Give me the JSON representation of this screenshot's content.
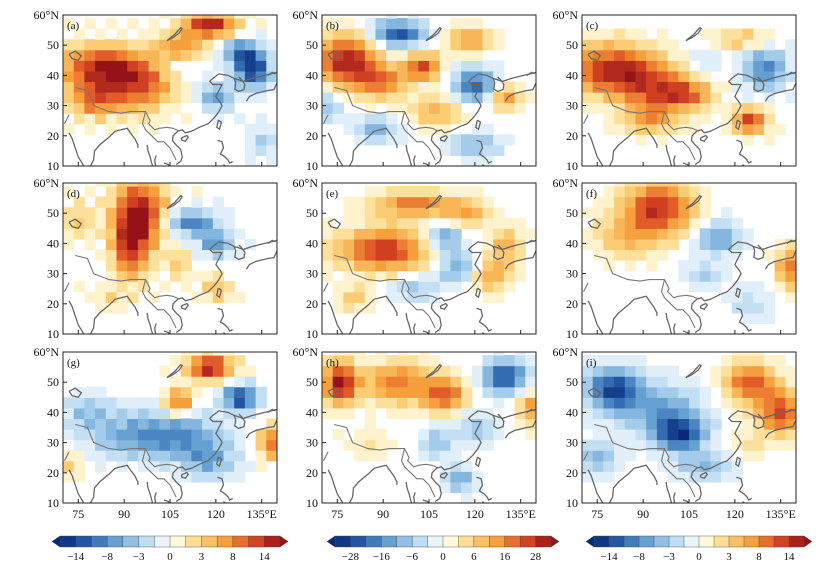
{
  "chart_data": {
    "type": "heatmap",
    "description_panels": [
      "(a)",
      "(b)",
      "(c)",
      "(d)",
      "(e)",
      "(f)",
      "(g)",
      "(h)",
      "(i)"
    ],
    "x_ticks": [
      75,
      90,
      105,
      120,
      135
    ],
    "x_tick_labels": [
      "75",
      "90",
      "105",
      "120",
      "135°E"
    ],
    "y_ticks": [
      60,
      50,
      40,
      30,
      20,
      10
    ],
    "y_tick_labels": [
      "60°N",
      "50",
      "40",
      "30",
      "20",
      "10"
    ],
    "xlim": [
      70,
      140
    ],
    "ylim": [
      10,
      60
    ],
    "colorbars": [
      {
        "name": "colorbar-left",
        "labels": [
          "−14",
          "−8",
          "−3",
          "0",
          "3",
          "8",
          "14"
        ]
      },
      {
        "name": "colorbar-middle",
        "labels": [
          "−28",
          "−16",
          "−6",
          "0",
          "6",
          "16",
          "28"
        ]
      },
      {
        "name": "colorbar-right",
        "labels": [
          "−14",
          "−8",
          "−3",
          "0",
          "3",
          "8",
          "14"
        ]
      }
    ],
    "panels": [
      {
        "label": "(a)",
        "blobs": [
          [
            82,
            43,
            9,
            5,
            0.85
          ],
          [
            95,
            37,
            8,
            6,
            0.7
          ],
          [
            80,
            32,
            6,
            4,
            0.6
          ],
          [
            118,
            57,
            6,
            3,
            0.9
          ],
          [
            108,
            50,
            6,
            3,
            0.5
          ],
          [
            132,
            42,
            4,
            4,
            -0.9
          ],
          [
            128,
            48,
            4,
            3,
            -0.6
          ],
          [
            120,
            33,
            4,
            3,
            -0.5
          ],
          [
            108,
            42,
            4,
            2,
            -0.2
          ],
          [
            135,
            18,
            3,
            3,
            -0.3
          ]
        ]
      },
      {
        "label": "(b)",
        "blobs": [
          [
            78,
            45,
            7,
            6,
            0.95
          ],
          [
            90,
            38,
            6,
            4,
            0.6
          ],
          [
            103,
            43,
            4,
            3,
            0.8
          ],
          [
            95,
            54,
            6,
            3,
            -0.8
          ],
          [
            118,
            52,
            5,
            3,
            0.5
          ],
          [
            120,
            37,
            5,
            4,
            -0.7
          ],
          [
            130,
            33,
            4,
            3,
            0.5
          ],
          [
            88,
            22,
            5,
            3,
            -0.4
          ],
          [
            108,
            28,
            6,
            4,
            0.4
          ],
          [
            120,
            17,
            6,
            3,
            -0.4
          ],
          [
            72,
            30,
            4,
            4,
            -0.3
          ]
        ]
      },
      {
        "label": "(c)",
        "blobs": [
          [
            80,
            42,
            10,
            6,
            0.9
          ],
          [
            95,
            35,
            8,
            6,
            0.6
          ],
          [
            92,
            25,
            6,
            3,
            0.4
          ],
          [
            125,
            25,
            4,
            3,
            0.8
          ],
          [
            130,
            42,
            5,
            5,
            -0.6
          ],
          [
            122,
            52,
            6,
            2,
            0.4
          ],
          [
            105,
            34,
            6,
            3,
            0.5
          ],
          [
            110,
            45,
            4,
            3,
            -0.2
          ]
        ]
      },
      {
        "label": "(d)",
        "blobs": [
          [
            95,
            50,
            6,
            8,
            0.95
          ],
          [
            92,
            38,
            4,
            7,
            0.7
          ],
          [
            75,
            48,
            4,
            4,
            0.3
          ],
          [
            112,
            47,
            6,
            3,
            -0.6
          ],
          [
            120,
            40,
            4,
            3,
            -0.5
          ],
          [
            108,
            33,
            3,
            3,
            0.3
          ],
          [
            120,
            25,
            3,
            3,
            0.4
          ],
          [
            85,
            22,
            5,
            3,
            0.2
          ]
        ]
      },
      {
        "label": "(e)",
        "blobs": [
          [
            90,
            38,
            10,
            5,
            0.85
          ],
          [
            100,
            53,
            10,
            3,
            0.6
          ],
          [
            118,
            50,
            5,
            3,
            0.4
          ],
          [
            110,
            42,
            4,
            3,
            -0.5
          ],
          [
            115,
            32,
            5,
            4,
            -0.5
          ],
          [
            125,
            30,
            5,
            4,
            0.5
          ],
          [
            130,
            40,
            4,
            4,
            0.4
          ],
          [
            80,
            22,
            4,
            3,
            0.3
          ],
          [
            100,
            25,
            5,
            3,
            -0.3
          ]
        ]
      },
      {
        "label": "(f)",
        "blobs": [
          [
            95,
            52,
            8,
            6,
            0.85
          ],
          [
            85,
            42,
            8,
            5,
            0.35
          ],
          [
            115,
            42,
            5,
            4,
            -0.5
          ],
          [
            110,
            30,
            4,
            3,
            -0.3
          ],
          [
            138,
            32,
            3,
            5,
            0.6
          ],
          [
            125,
            20,
            5,
            4,
            -0.2
          ]
        ]
      },
      {
        "label": "(g)",
        "blobs": [
          [
            118,
            55,
            5,
            3,
            0.95
          ],
          [
            108,
            44,
            3,
            3,
            0.7
          ],
          [
            128,
            45,
            4,
            3,
            -0.85
          ],
          [
            108,
            32,
            10,
            5,
            -0.55
          ],
          [
            90,
            33,
            10,
            6,
            -0.35
          ],
          [
            78,
            40,
            5,
            4,
            -0.3
          ],
          [
            138,
            30,
            3,
            4,
            0.6
          ],
          [
            118,
            24,
            6,
            4,
            -0.4
          ],
          [
            72,
            22,
            3,
            3,
            0.3
          ]
        ]
      },
      {
        "label": "(h)",
        "blobs": [
          [
            76,
            50,
            4,
            5,
            0.95
          ],
          [
            95,
            50,
            8,
            5,
            0.6
          ],
          [
            110,
            46,
            5,
            4,
            0.7
          ],
          [
            130,
            52,
            5,
            4,
            -0.8
          ],
          [
            120,
            35,
            5,
            4,
            -0.3
          ],
          [
            108,
            30,
            4,
            4,
            -0.3
          ],
          [
            115,
            18,
            3,
            3,
            -0.5
          ],
          [
            138,
            42,
            3,
            4,
            0.5
          ],
          [
            85,
            30,
            6,
            4,
            0.15
          ]
        ]
      },
      {
        "label": "(i)",
        "blobs": [
          [
            80,
            48,
            6,
            5,
            -0.8
          ],
          [
            102,
            33,
            6,
            4,
            -0.9
          ],
          [
            95,
            42,
            10,
            6,
            -0.45
          ],
          [
            125,
            50,
            6,
            5,
            0.7
          ],
          [
            135,
            40,
            5,
            5,
            0.8
          ],
          [
            110,
            22,
            6,
            3,
            -0.4
          ],
          [
            75,
            25,
            5,
            4,
            -0.4
          ],
          [
            125,
            30,
            4,
            3,
            0.2
          ]
        ]
      }
    ]
  }
}
